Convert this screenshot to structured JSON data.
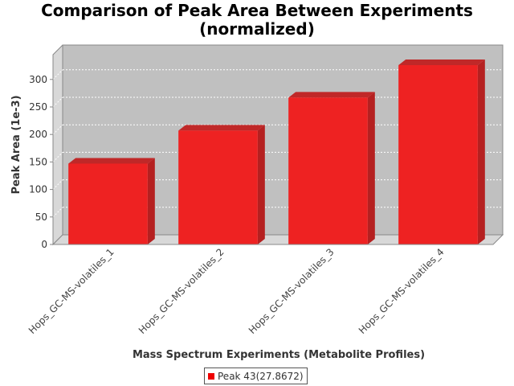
{
  "chart_data": {
    "type": "bar",
    "title_lines": [
      "Comparison of Peak Area Between Experiments",
      "(normalized)"
    ],
    "xlabel": "Mass Spectrum Experiments (Metabolite Profiles)",
    "ylabel": "Peak Area (1e-3)",
    "categories": [
      "Hops_GC-MS-volatiles_1",
      "Hops_GC-MS-volatiles_2",
      "Hops_GC-MS-volatiles_3",
      "Hops_GC-MS-volatiles_4"
    ],
    "series": [
      {
        "name": "Peak 43(27.8672)",
        "values": [
          147,
          207,
          267,
          326
        ],
        "color": "#ee0000"
      }
    ],
    "yticks": [
      "0",
      "50",
      "100",
      "150",
      "200",
      "250",
      "300"
    ],
    "ylim": [
      0,
      345
    ],
    "grid": true,
    "legend_position": "bottom",
    "style": "3d",
    "plot_background": "#c0c0c0",
    "bar_color": "#ee2222"
  }
}
